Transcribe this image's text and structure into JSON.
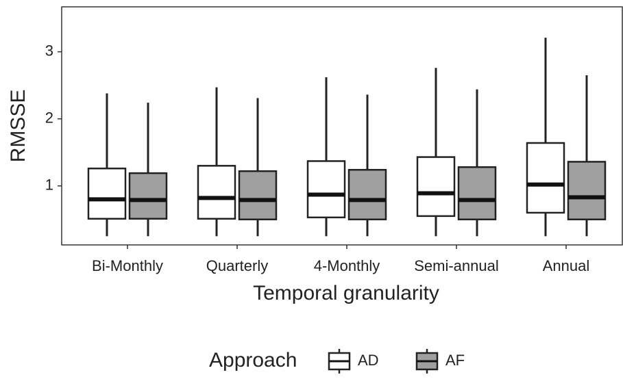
{
  "chart_data": {
    "type": "boxplot",
    "x_label": "Temporal granularity",
    "y_label": "RMSSE",
    "categories": [
      "Bi-Monthly",
      "Quarterly",
      "4-Monthly",
      "Semi-annual",
      "Annual"
    ],
    "legend_title": "Approach",
    "series": [
      {
        "name": "AD",
        "color": "#ffffff",
        "low": [
          0.25,
          0.25,
          0.25,
          0.25,
          0.25
        ],
        "q1": [
          0.51,
          0.51,
          0.53,
          0.55,
          0.6
        ],
        "median": [
          0.8,
          0.82,
          0.87,
          0.89,
          1.02
        ],
        "q3": [
          1.26,
          1.3,
          1.37,
          1.43,
          1.64
        ],
        "high": [
          2.38,
          2.47,
          2.62,
          2.76,
          3.21
        ]
      },
      {
        "name": "AF",
        "color": "#a0a0a0",
        "low": [
          0.25,
          0.25,
          0.25,
          0.25,
          0.25
        ],
        "q1": [
          0.51,
          0.5,
          0.5,
          0.5,
          0.5
        ],
        "median": [
          0.79,
          0.79,
          0.79,
          0.79,
          0.83
        ],
        "q3": [
          1.19,
          1.22,
          1.24,
          1.28,
          1.36
        ],
        "high": [
          2.24,
          2.31,
          2.36,
          2.44,
          2.65
        ]
      }
    ],
    "ylim": [
      0.12,
      3.67
    ],
    "yticks": [
      1,
      2,
      3
    ]
  }
}
